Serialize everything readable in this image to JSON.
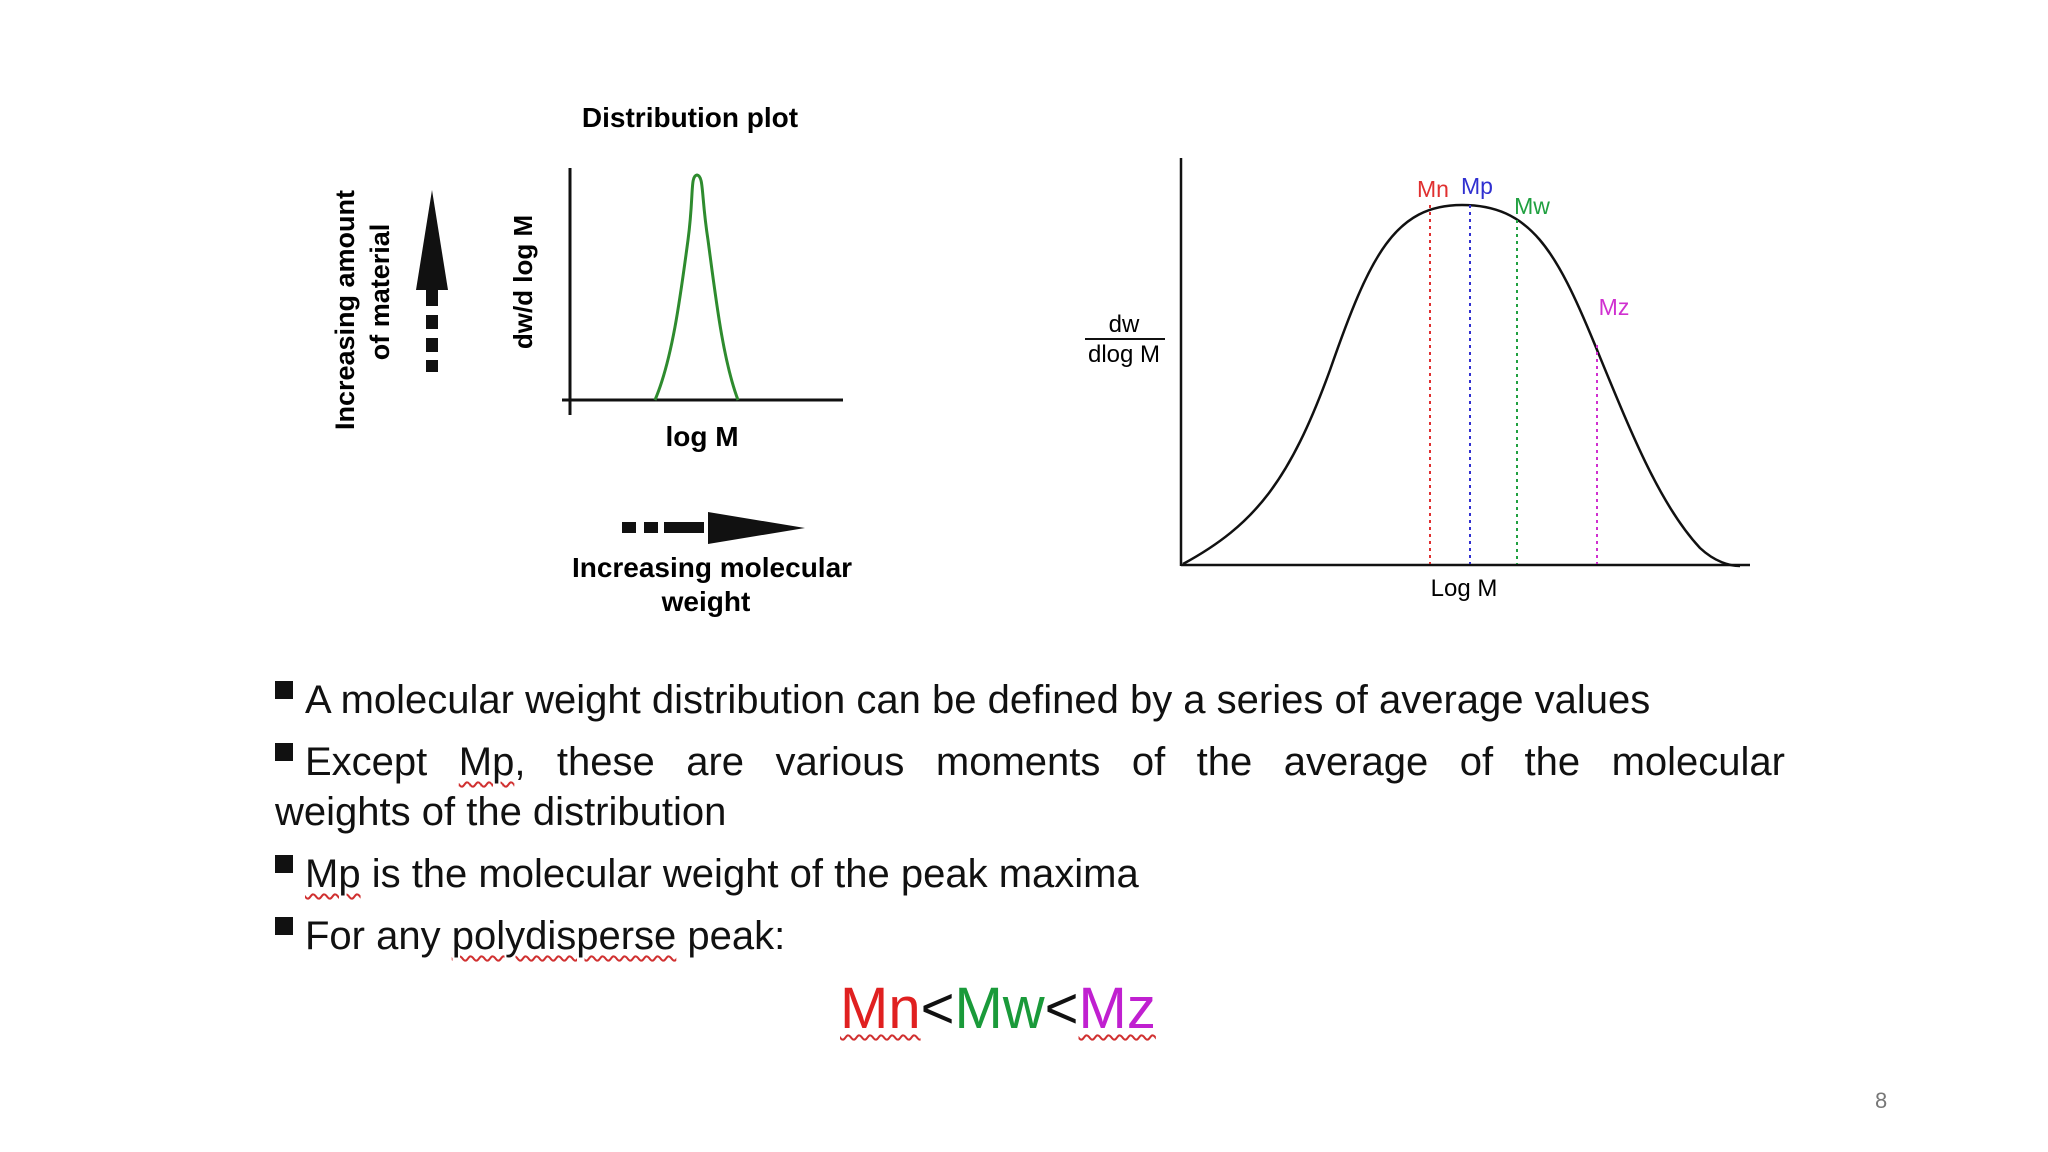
{
  "left_figure": {
    "title": "Distribution plot",
    "y_axis_label": "dw/d log M",
    "x_axis_label": "log M",
    "vertical_arrow_label_line1": "Increasing amount",
    "vertical_arrow_label_line2": "of material",
    "horizontal_arrow_label_line1": "Increasing molecular",
    "horizontal_arrow_label_line2": "weight",
    "curve_color": "#2e8b2e"
  },
  "right_figure": {
    "y_label_numerator": "dw",
    "y_label_denominator": "dlog M",
    "x_label": "Log M",
    "markers": [
      {
        "label": "Mn",
        "color": "#e03030"
      },
      {
        "label": "Mp",
        "color": "#3030d0"
      },
      {
        "label": "Mw",
        "color": "#20a040"
      },
      {
        "label": "Mz",
        "color": "#d030d0"
      }
    ]
  },
  "bullets": {
    "b1": "A molecular weight distribution can be defined by a series of average values",
    "b2_pre": "Except ",
    "b2_mp": "Mp",
    "b2_post": ", these are various moments of the average of the molecular",
    "b2_line2": "weights of the distribution",
    "b3_mp": "Mp",
    "b3_post": " is the molecular weight of the peak maxima",
    "b4_pre": "For any ",
    "b4_word": "polydisperse",
    "b4_post": " peak:"
  },
  "inequality": {
    "mn": "Mn",
    "lt1": "<",
    "mw": "Mw",
    "lt2": "<",
    "mz": "Mz",
    "mn_color": "#e02020",
    "mw_color": "#1a9a3a",
    "mz_color": "#c020d0"
  },
  "page_number": "8"
}
